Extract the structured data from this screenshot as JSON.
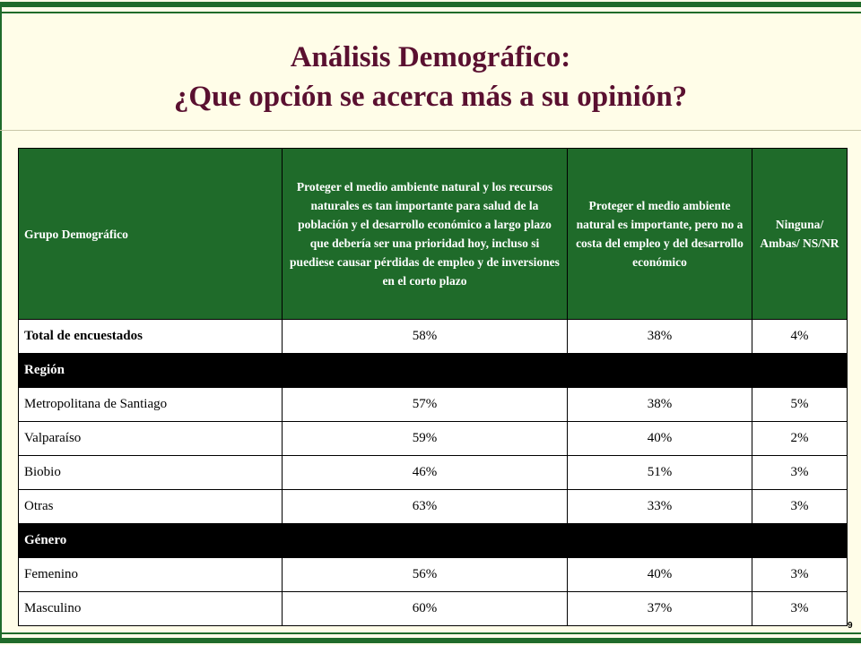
{
  "title": {
    "line1": "Análisis Demográfico:",
    "line2": "¿Que opción se acerca más a su opinión?"
  },
  "table": {
    "headers": [
      "Grupo Demográfico",
      "Proteger el medio ambiente natural y los recursos naturales es tan importante para salud de la población y el desarrollo económico a largo plazo que debería ser una prioridad hoy, incluso si puediese causar pérdidas de empleo y de inversiones en el corto plazo",
      "Proteger el medio ambiente natural es importante, pero no a costa del empleo y del desarrollo económico",
      "Ninguna/ Ambas/ NS/NR"
    ],
    "total": {
      "label": "Total de encuestados",
      "values": [
        "58%",
        "38%",
        "4%"
      ]
    },
    "sections": [
      {
        "title": "Región",
        "rows": [
          {
            "label": "Metropolitana de Santiago",
            "values": [
              "57%",
              "38%",
              "5%"
            ]
          },
          {
            "label": "Valparaíso",
            "values": [
              "59%",
              "40%",
              "2%"
            ]
          },
          {
            "label": "Biobio",
            "values": [
              "46%",
              "51%",
              "3%"
            ]
          },
          {
            "label": "Otras",
            "values": [
              "63%",
              "33%",
              "3%"
            ]
          }
        ]
      },
      {
        "title": "Género",
        "rows": [
          {
            "label": "Femenino",
            "values": [
              "56%",
              "40%",
              "3%"
            ]
          },
          {
            "label": "Masculino",
            "values": [
              "60%",
              "37%",
              "3%"
            ]
          }
        ]
      }
    ]
  },
  "page_number": "9",
  "colors": {
    "accent_green": "#1f6b2a",
    "title_color": "#5a1030",
    "background": "#fffde8"
  }
}
